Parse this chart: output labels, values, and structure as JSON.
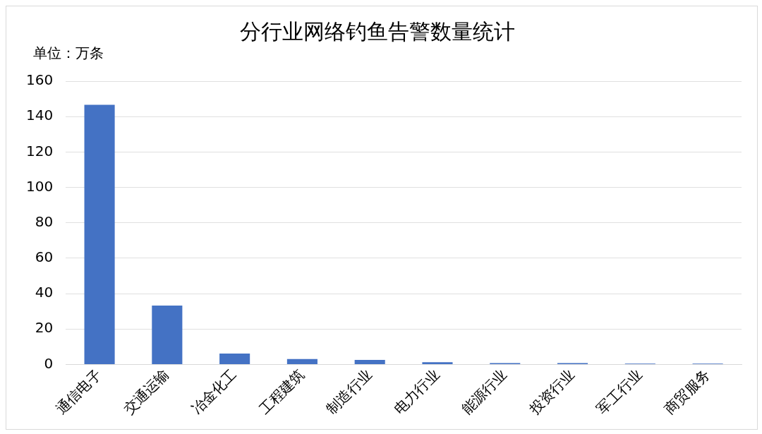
{
  "chart_data": {
    "type": "bar",
    "title": "分行业网络钓鱼告警数量统计",
    "ylabel": "单位：万条",
    "categories": [
      "通信电子",
      "交通运输",
      "冶金化工",
      "工程建筑",
      "制造行业",
      "电力行业",
      "能源行业",
      "投资行业",
      "军工行业",
      "商贸服务"
    ],
    "values": [
      146.6,
      33.3,
      6.2,
      3.1,
      2.6,
      1.3,
      0.8,
      0.8,
      0.5,
      0.5
    ],
    "color": "#4472c4",
    "ylim": [
      0,
      160
    ],
    "yticks": [
      0,
      20,
      40,
      60,
      80,
      100,
      120,
      140,
      160
    ],
    "grid": "y",
    "legend": false
  }
}
